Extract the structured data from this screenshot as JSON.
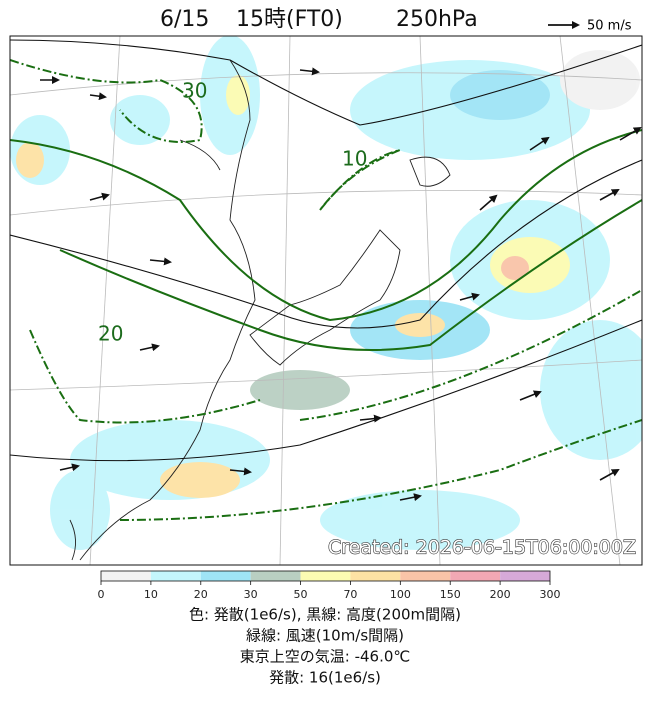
{
  "header": {
    "date": "6/15",
    "time": "15時(FT0)",
    "level": "250hPa",
    "arrow_scale": "50 m/s"
  },
  "map": {
    "contour_labels": [
      "30",
      "10",
      "20"
    ],
    "watermark": "Created: 2026-06-15T06:00:00Z"
  },
  "colorbar": {
    "ticks": [
      0,
      10,
      20,
      30,
      50,
      70,
      100,
      150,
      200,
      300
    ],
    "colors": [
      "#f2f2f2",
      "#c4f6fc",
      "#9fe4f6",
      "#b9cfc2",
      "#fbfbb2",
      "#fde2a4",
      "#f9c4a8",
      "#f2a8b4",
      "#d6a9d8"
    ]
  },
  "footer": {
    "lines": [
      "色: 発散(1e6/s),  黒線: 高度(200m間隔)",
      "緑線: 風速(10m/s間隔)",
      "東京上空の気温: -46.0℃",
      "発散: 16(1e6/s)"
    ]
  }
}
